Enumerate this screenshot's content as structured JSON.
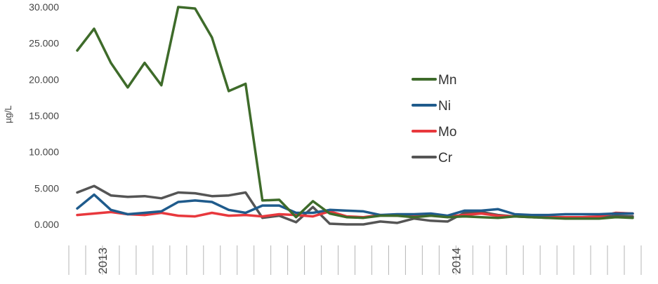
{
  "chart_data": {
    "type": "line",
    "ylabel": "µg/L",
    "xlabel": "",
    "ylim": [
      0,
      30000
    ],
    "yticks": [
      "0.000",
      "5.000",
      "10.000",
      "15.000",
      "20.000",
      "25.000",
      "30.000"
    ],
    "ytick_values": [
      0,
      5000,
      10000,
      15000,
      20000,
      25000,
      30000
    ],
    "x_count": 34,
    "year_labels": [
      {
        "label": "2013",
        "index": 2
      },
      {
        "label": "2014",
        "index": 23
      }
    ],
    "grid": false,
    "legend_position": "right-middle",
    "series": [
      {
        "name": "Mn",
        "color": "#3e6b2a",
        "values": [
          24000,
          27000,
          22300,
          18900,
          22300,
          19200,
          30000,
          29800,
          25800,
          18400,
          19400,
          3300,
          3400,
          1000,
          3200,
          1500,
          1000,
          900,
          1200,
          1200,
          1000,
          1200,
          1000,
          1100,
          1000,
          900,
          1100,
          1000,
          900,
          800,
          800,
          800,
          1000,
          900
        ]
      },
      {
        "name": "Ni",
        "color": "#1f5b8c",
        "values": [
          2200,
          4100,
          2000,
          1400,
          1600,
          1800,
          3100,
          3300,
          3100,
          2000,
          1600,
          2600,
          2600,
          1600,
          1600,
          2000,
          1900,
          1800,
          1300,
          1400,
          1400,
          1500,
          1200,
          1900,
          1900,
          2100,
          1400,
          1300,
          1300,
          1400,
          1400,
          1400,
          1500,
          1500
        ]
      },
      {
        "name": "Mo",
        "color": "#e8383d",
        "values": [
          1300,
          1500,
          1700,
          1400,
          1300,
          1600,
          1200,
          1100,
          1600,
          1200,
          1300,
          1100,
          1400,
          1300,
          1100,
          1800,
          1100,
          1000,
          1300,
          1200,
          1300,
          1200,
          1100,
          1300,
          1500,
          1200,
          1100,
          1100,
          1000,
          1000,
          1000,
          1100,
          1600,
          1500
        ]
      },
      {
        "name": "Cr",
        "color": "#555555",
        "values": [
          4400,
          5300,
          4000,
          3800,
          3900,
          3600,
          4400,
          4300,
          3900,
          4000,
          4400,
          900,
          1200,
          300,
          2400,
          100,
          0,
          0,
          400,
          200,
          800,
          500,
          400,
          1600,
          1700,
          1300,
          1100,
          1000,
          900,
          900,
          900,
          900,
          1200,
          1100
        ]
      }
    ]
  }
}
